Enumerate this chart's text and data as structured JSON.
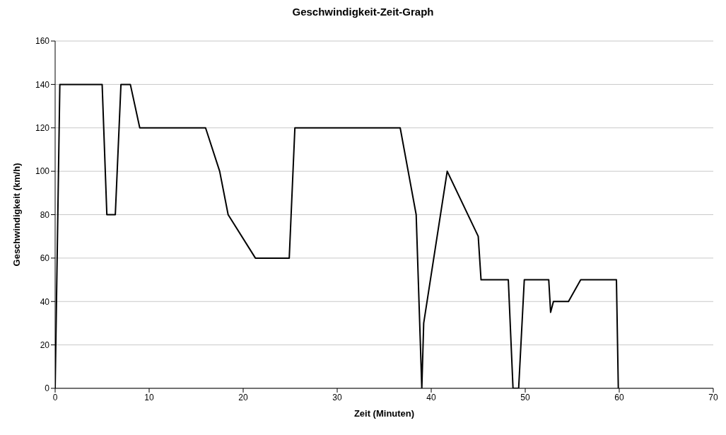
{
  "chart_data": {
    "type": "line",
    "title": "Geschwindigkeit-Zeit-Graph",
    "xlabel": "Zeit (Minuten)",
    "ylabel": "Geschwindigkeit (km/h)",
    "x": [
      0,
      0.5,
      5,
      5.5,
      6.4,
      7,
      8,
      9,
      16,
      17.5,
      18.4,
      21.3,
      24.9,
      25.5,
      36.7,
      38.4,
      39,
      39.2,
      41.7,
      45,
      45.3,
      48.2,
      48.7,
      49.3,
      49.9,
      52.5,
      52.7,
      53,
      54.6,
      55.9,
      59.7,
      59.9
    ],
    "series": [
      {
        "color": "#000000",
        "values": [
          0,
          140,
          140,
          80,
          80,
          140,
          140,
          120,
          120,
          100,
          80,
          60,
          60,
          120,
          120,
          80,
          0,
          30,
          100,
          70,
          50,
          50,
          0,
          0,
          50,
          50,
          35,
          40,
          40,
          50,
          50,
          0
        ]
      }
    ],
    "xlim": [
      0,
      70
    ],
    "xticks": [
      0,
      10,
      20,
      30,
      40,
      50,
      60,
      70
    ],
    "ylim": [
      0,
      160
    ],
    "yticks": [
      0,
      20,
      40,
      60,
      80,
      100,
      120,
      140,
      160
    ],
    "grid": "y",
    "legend": false,
    "marker": "none",
    "line_style": "solid"
  }
}
